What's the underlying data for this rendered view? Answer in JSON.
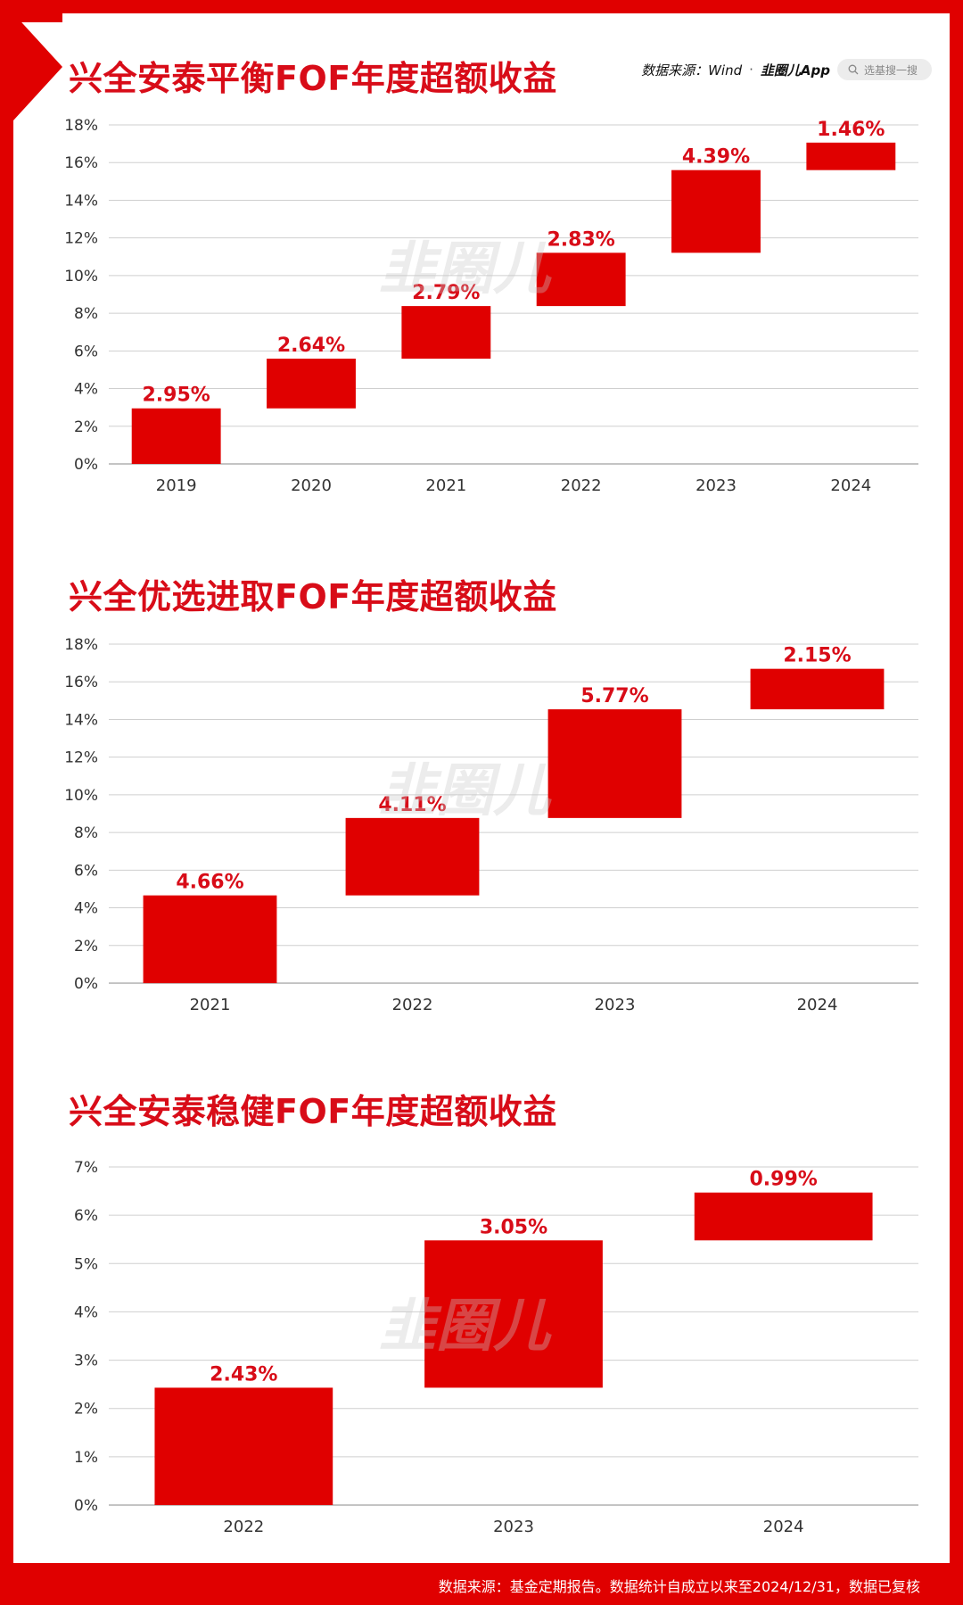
{
  "source": {
    "text": "数据来源：Wind",
    "separator": "·",
    "app_logo": "韭圈儿App",
    "search_placeholder": "选基搜一搜"
  },
  "watermark": "韭圈儿",
  "footer": "数据来源：基金定期报告。数据统计自成立以来至2024/12/31，数据已复核",
  "colors": {
    "bar": "#e00000",
    "label": "#d80c18",
    "frame": "#e00000"
  },
  "chart_data": [
    {
      "type": "bar",
      "subtype": "waterfall",
      "title": "兴全安泰平衡FOF年度超额收益",
      "categories": [
        "2019",
        "2020",
        "2021",
        "2022",
        "2023",
        "2024"
      ],
      "values": [
        2.95,
        2.64,
        2.79,
        2.83,
        4.39,
        1.46
      ],
      "value_labels": [
        "2.95%",
        "2.64%",
        "2.79%",
        "2.83%",
        "4.39%",
        "1.46%"
      ],
      "ylim": [
        0,
        18
      ],
      "yticks": [
        0,
        2,
        4,
        6,
        8,
        10,
        12,
        14,
        16,
        18
      ],
      "ytick_labels": [
        "0%",
        "2%",
        "4%",
        "6%",
        "8%",
        "10%",
        "12%",
        "14%",
        "16%",
        "18%"
      ],
      "grid": true
    },
    {
      "type": "bar",
      "subtype": "waterfall",
      "title": "兴全优选进取FOF年度超额收益",
      "categories": [
        "2021",
        "2022",
        "2023",
        "2024"
      ],
      "values": [
        4.66,
        4.11,
        5.77,
        2.15
      ],
      "value_labels": [
        "4.66%",
        "4.11%",
        "5.77%",
        "2.15%"
      ],
      "ylim": [
        0,
        18
      ],
      "yticks": [
        0,
        2,
        4,
        6,
        8,
        10,
        12,
        14,
        16,
        18
      ],
      "ytick_labels": [
        "0%",
        "2%",
        "4%",
        "6%",
        "8%",
        "10%",
        "12%",
        "14%",
        "16%",
        "18%"
      ],
      "grid": true
    },
    {
      "type": "bar",
      "subtype": "waterfall",
      "title": "兴全安泰稳健FOF年度超额收益",
      "categories": [
        "2022",
        "2023",
        "2024"
      ],
      "values": [
        2.43,
        3.05,
        0.99
      ],
      "value_labels": [
        "2.43%",
        "3.05%",
        "0.99%"
      ],
      "ylim": [
        0,
        7
      ],
      "yticks": [
        0,
        1,
        2,
        3,
        4,
        5,
        6,
        7
      ],
      "ytick_labels": [
        "0%",
        "1%",
        "2%",
        "3%",
        "4%",
        "5%",
        "6%",
        "7%"
      ],
      "grid": true
    }
  ]
}
